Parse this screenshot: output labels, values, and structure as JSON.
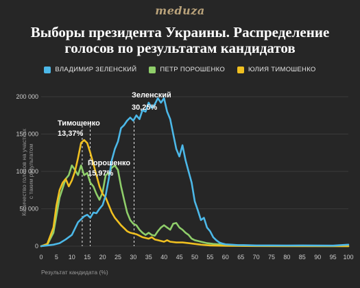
{
  "brand": "meduza",
  "title_line1": "Выборы президента Украины. Распределение",
  "title_line2": "голосов по результатам кандидатов",
  "chart_data": {
    "type": "line",
    "title": "Выборы президента Украины. Распределение голосов по результатам кандидатов",
    "xlabel": "Результат кандидата (%)",
    "ylabel": "Количество голосов на участках с таким результатом",
    "xlim": [
      0,
      100
    ],
    "ylim": [
      0,
      200000
    ],
    "x_ticks": [
      0,
      5,
      10,
      15,
      20,
      25,
      30,
      35,
      40,
      45,
      50,
      55,
      60,
      65,
      70,
      75,
      80,
      85,
      90,
      95,
      100
    ],
    "y_ticks": [
      0,
      50000,
      100000,
      150000,
      200000
    ],
    "y_tick_labels": [
      "0",
      "50 000",
      "100 000",
      "150 000",
      "200 000"
    ],
    "grid": true,
    "legend_position": "top-center",
    "series": [
      {
        "name": "ВЛАДИМИР ЗЕЛЕНСКИЙ",
        "color": "#4cb8e8",
        "x": [
          0,
          2,
          4,
          6,
          8,
          10,
          12,
          13,
          14,
          15,
          16,
          17,
          18,
          19,
          20,
          21,
          22,
          23,
          24,
          25,
          26,
          27,
          28,
          29,
          30,
          31,
          32,
          33,
          34,
          35,
          36,
          37,
          38,
          39,
          40,
          41,
          42,
          43,
          44,
          45,
          46,
          47,
          48,
          49,
          50,
          51,
          52,
          53,
          54,
          55,
          56,
          57,
          58,
          59,
          60,
          62,
          64,
          66,
          68,
          70,
          75,
          80,
          85,
          90,
          95,
          100
        ],
        "y": [
          0,
          1000,
          2000,
          4000,
          9000,
          15000,
          32000,
          36000,
          40000,
          42000,
          38000,
          45000,
          44000,
          50000,
          55000,
          68000,
          90000,
          115000,
          130000,
          140000,
          158000,
          162000,
          168000,
          172000,
          168000,
          175000,
          170000,
          182000,
          180000,
          192000,
          185000,
          190000,
          198000,
          192000,
          198000,
          180000,
          170000,
          150000,
          130000,
          120000,
          135000,
          115000,
          100000,
          85000,
          60000,
          48000,
          35000,
          38000,
          25000,
          20000,
          12000,
          8000,
          5000,
          3500,
          2500,
          2000,
          1500,
          1500,
          1200,
          1000,
          1000,
          800,
          1000,
          800,
          700,
          2000
        ]
      },
      {
        "name": "ПЕТР ПОРОШЕНКО",
        "color": "#8fce6a",
        "x": [
          0,
          2,
          4,
          6,
          8,
          9,
          10,
          11,
          12,
          13,
          14,
          15,
          16,
          17,
          18,
          19,
          20,
          21,
          22,
          23,
          24,
          25,
          26,
          27,
          28,
          29,
          30,
          31,
          32,
          33,
          34,
          35,
          36,
          37,
          38,
          39,
          40,
          41,
          42,
          43,
          44,
          45,
          46,
          47,
          48,
          49,
          50,
          52,
          54,
          56,
          58,
          60,
          65,
          70,
          80,
          90,
          100
        ],
        "y": [
          0,
          2000,
          18000,
          65000,
          90000,
          95000,
          108000,
          102000,
          95000,
          108000,
          95000,
          98000,
          85000,
          80000,
          70000,
          62000,
          72000,
          95000,
          98000,
          105000,
          108000,
          102000,
          80000,
          62000,
          45000,
          35000,
          30000,
          28000,
          22000,
          18000,
          15000,
          18000,
          15000,
          14000,
          20000,
          25000,
          28000,
          25000,
          22000,
          30000,
          31000,
          25000,
          22000,
          18000,
          15000,
          10000,
          8000,
          6000,
          4000,
          3000,
          2500,
          2000,
          1000,
          500,
          300,
          200,
          0
        ]
      },
      {
        "name": "ЮЛИЯ ТИМОШЕНКО",
        "color": "#f0c020",
        "x": [
          0,
          2,
          4,
          5,
          6,
          7,
          8,
          9,
          10,
          11,
          12,
          13,
          14,
          15,
          16,
          17,
          18,
          19,
          20,
          21,
          22,
          23,
          24,
          25,
          26,
          27,
          28,
          29,
          30,
          31,
          32,
          33,
          34,
          35,
          36,
          37,
          38,
          39,
          40,
          41,
          42,
          44,
          46,
          48,
          50,
          52,
          55,
          60,
          70,
          80,
          100
        ],
        "y": [
          0,
          3000,
          25000,
          55000,
          75000,
          85000,
          90000,
          80000,
          88000,
          100000,
          118000,
          138000,
          142000,
          138000,
          125000,
          110000,
          95000,
          80000,
          70000,
          65000,
          55000,
          45000,
          38000,
          33000,
          28000,
          24000,
          20000,
          18000,
          17000,
          16000,
          14000,
          12000,
          11000,
          10000,
          12000,
          9000,
          8000,
          7000,
          6000,
          8000,
          6000,
          5000,
          5000,
          4000,
          3000,
          2000,
          1000,
          500,
          200,
          100,
          0
        ]
      }
    ],
    "annotations": [
      {
        "x": 30.25,
        "label_name": "Зеленский",
        "label_value": "30,25%"
      },
      {
        "x": 13.37,
        "label_name": "Тимошенко",
        "label_value": "13,37%"
      },
      {
        "x": 15.97,
        "label_name": "Порошенко",
        "label_value": "15,97%"
      }
    ]
  }
}
